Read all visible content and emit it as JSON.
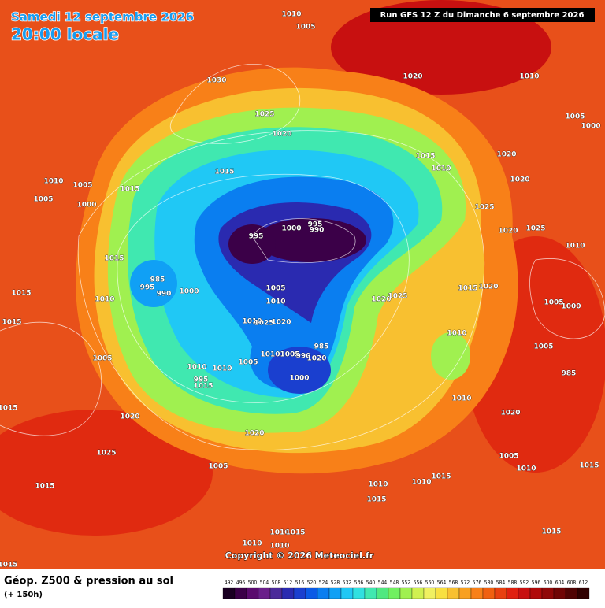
{
  "header": {
    "date": "Samedi 12 septembre 2026",
    "time": "20:00 locale",
    "run": "Run GFS 12 Z du Dimanche 6 septembre 2026"
  },
  "footer": {
    "title": "Géop. Z500 & pression au sol",
    "subtitle": "(+ 150h)",
    "copyright": "Copyright © 2026 Meteociel.fr"
  },
  "scale": {
    "values": [
      492,
      496,
      500,
      504,
      508,
      512,
      516,
      520,
      524,
      528,
      532,
      536,
      540,
      544,
      548,
      552,
      556,
      560,
      564,
      568,
      572,
      576,
      580,
      584,
      588,
      592,
      596,
      600,
      604,
      608,
      612
    ],
    "colors": [
      "#1a0022",
      "#3b0048",
      "#5a0a6e",
      "#6a1e8a",
      "#4b2a9a",
      "#2a2ab0",
      "#1a3fcf",
      "#0a5ae6",
      "#0a7ef0",
      "#10a0f5",
      "#20c8f5",
      "#30e0e0",
      "#40e8b0",
      "#50e880",
      "#70f060",
      "#a0f050",
      "#d0f050",
      "#f0f060",
      "#f8e040",
      "#f8c030",
      "#f8a020",
      "#f88018",
      "#f06010",
      "#e84010",
      "#e02010",
      "#c81010",
      "#b00a0a",
      "#900808",
      "#700505",
      "#500303",
      "#300000"
    ]
  },
  "pressure_labels": [
    1010,
    1005,
    1030,
    1020,
    1010,
    1025,
    1020,
    1005,
    1000,
    1015,
    1015,
    1010,
    1005,
    1005,
    1000,
    1015,
    1010,
    1020,
    1020,
    1025,
    1020,
    1025,
    995,
    1000,
    995,
    990,
    1015,
    985,
    995,
    990,
    1000,
    1015,
    1010,
    1005,
    1010,
    1020,
    1025,
    1015,
    1020,
    1010,
    1005,
    1000,
    1015,
    1010,
    1025,
    1020,
    1010,
    985,
    1010,
    1005,
    990,
    1020,
    1005,
    1010,
    1010,
    1005,
    1005,
    985,
    1000,
    995,
    1015,
    1015,
    1020,
    1010,
    1020,
    1020,
    1025,
    1005,
    1005,
    1010,
    1015,
    1015,
    1010,
    1010,
    1015,
    1015,
    1010,
    1015,
    1010,
    1010,
    1015,
    1015
  ]
}
